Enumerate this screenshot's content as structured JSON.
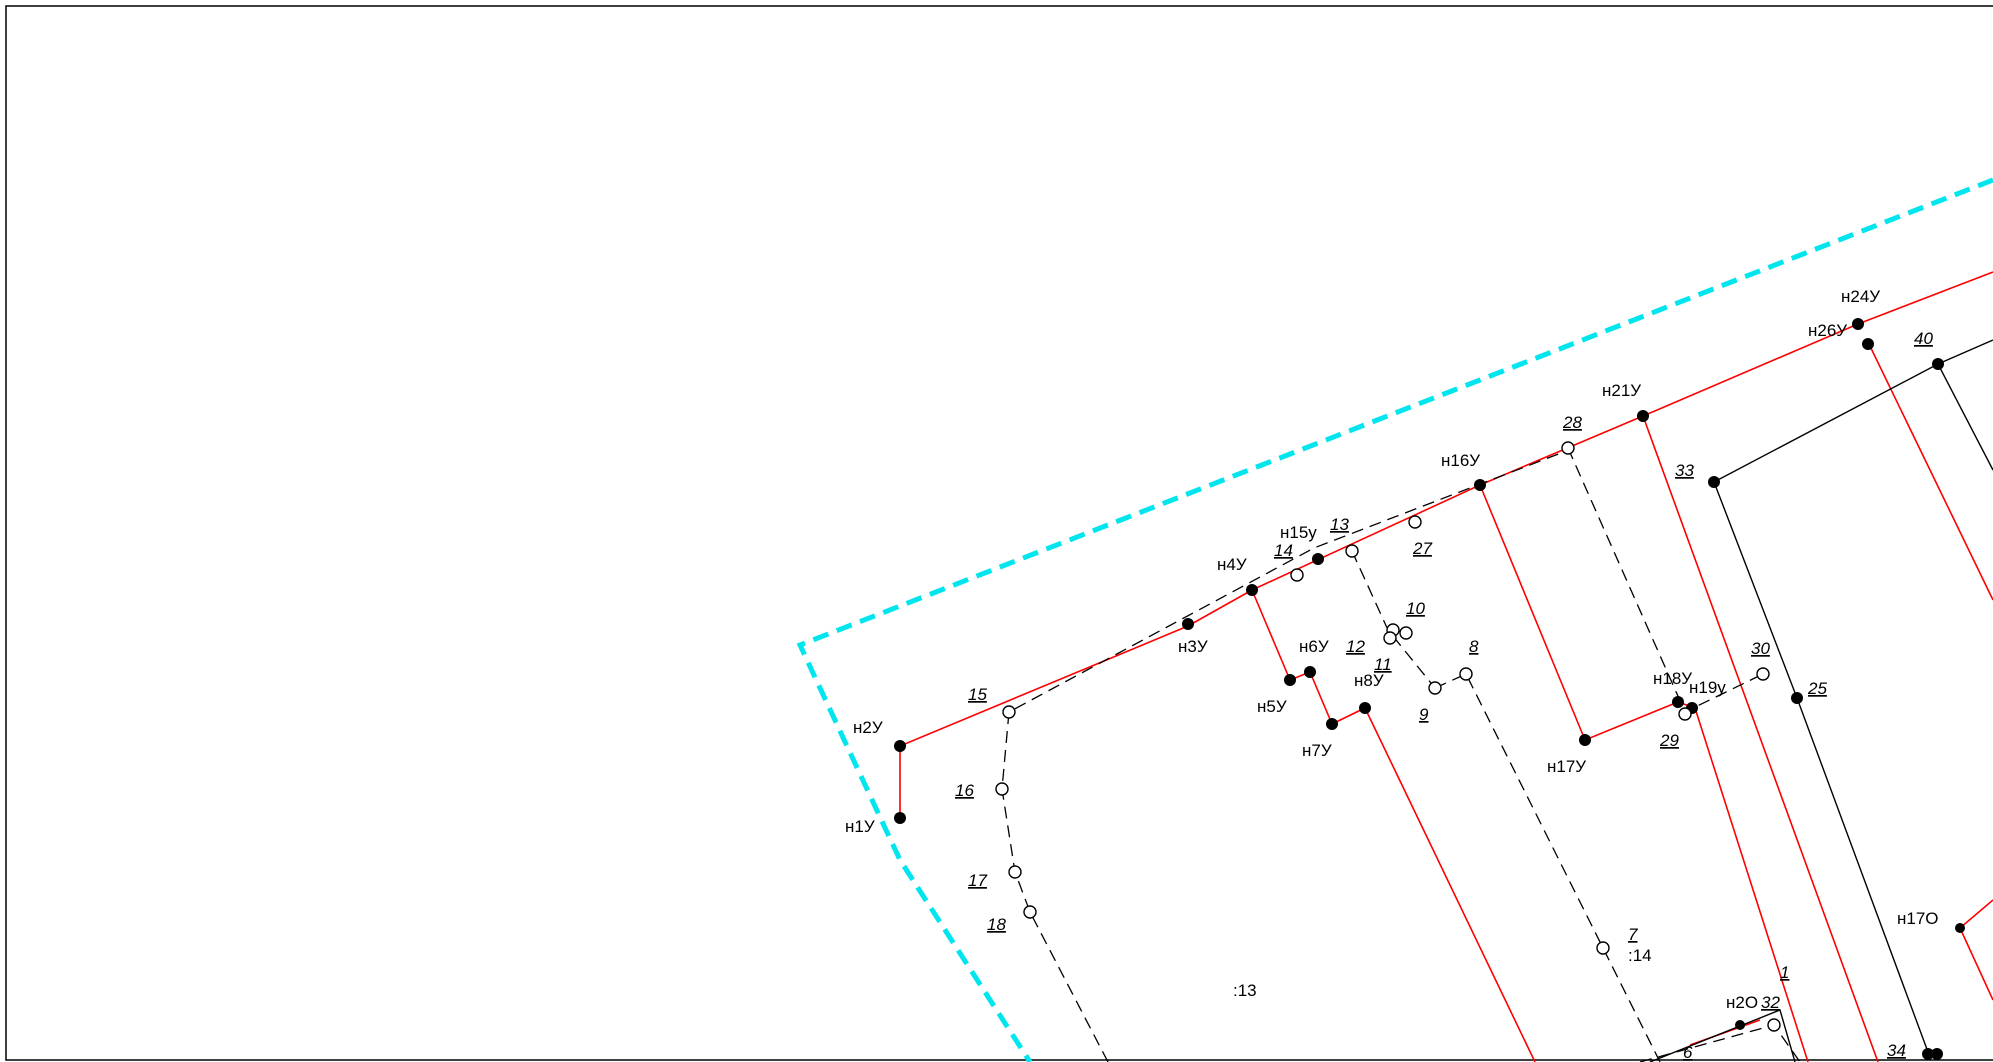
{
  "map": {
    "colors": {
      "background": "#ffffff",
      "boundary_dashed": "#00e5ee",
      "new_line": "#ff0000",
      "existing_line": "#000000",
      "dashed_line": "#000000"
    },
    "labels": {
      "n1y": "н1У",
      "n2y": "н2У",
      "n3y": "н3У",
      "n4y": "н4У",
      "n5y": "н5У",
      "n6y": "н6У",
      "n7y": "н7У",
      "n8y": "н8У",
      "n15y": "н15у",
      "n16y": "н16У",
      "n17y": "н17У",
      "n18y": "н18У",
      "n19y": "н19у",
      "n21y": "н21У",
      "n24y": "н24У",
      "n26y": "н26У",
      "n17o": "н17О",
      "n20o": "н2О",
      "p15": "15",
      "p16": "16",
      "p17": "17",
      "p18": "18",
      "p14": "14",
      "p13": "13",
      "p27": "27",
      "p10": "10",
      "p11": "11",
      "p12": "12",
      "p9": "9",
      "p8": "8",
      "p28": "28",
      "p29": "29",
      "p30": "30",
      "p25": "25",
      "p33": "33",
      "p40": "40",
      "p7": "7",
      "p6": "6",
      "p32": "32",
      "p34": "34",
      "p1": "1",
      "parcel13": ":13",
      "parcel14": ":14"
    }
  }
}
